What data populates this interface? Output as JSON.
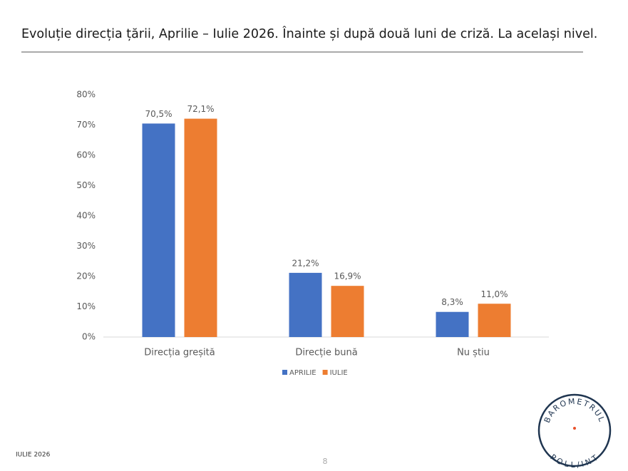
{
  "chart_data": {
    "type": "bar",
    "title": "Evoluție direcția țării, Aprilie – Iulie 2026. Înainte și după două luni de criză. La același nivel.",
    "categories": [
      "Direcția greșită",
      "Direcție bună",
      "Nu știu"
    ],
    "series": [
      {
        "name": "APRILIE",
        "color": "#4472c4",
        "values": [
          70.5,
          21.2,
          8.3
        ],
        "value_labels": [
          "70,5%",
          "21,2%",
          "8,3%"
        ]
      },
      {
        "name": "IULIE",
        "color": "#ed7d31",
        "values": [
          72.1,
          16.9,
          11.0
        ],
        "value_labels": [
          "72,1%",
          "16,9%",
          "11,0%"
        ]
      }
    ],
    "ylim": [
      0,
      80
    ],
    "yticks": [
      {
        "value": 0,
        "label": "0%"
      },
      {
        "value": 10,
        "label": "10%"
      },
      {
        "value": 20,
        "label": "20%"
      },
      {
        "value": 30,
        "label": "30%"
      },
      {
        "value": 40,
        "label": "40%"
      },
      {
        "value": 50,
        "label": "50%"
      },
      {
        "value": 60,
        "label": "60%"
      },
      {
        "value": 70,
        "label": "70%"
      },
      {
        "value": 80,
        "label": "80%"
      }
    ],
    "grid": false,
    "legend": "bottom"
  },
  "footer": {
    "date": "IULIE 2026",
    "page": "8"
  },
  "logo": {
    "top": "BAROMETRUL",
    "bottom": "POLL/INT"
  }
}
